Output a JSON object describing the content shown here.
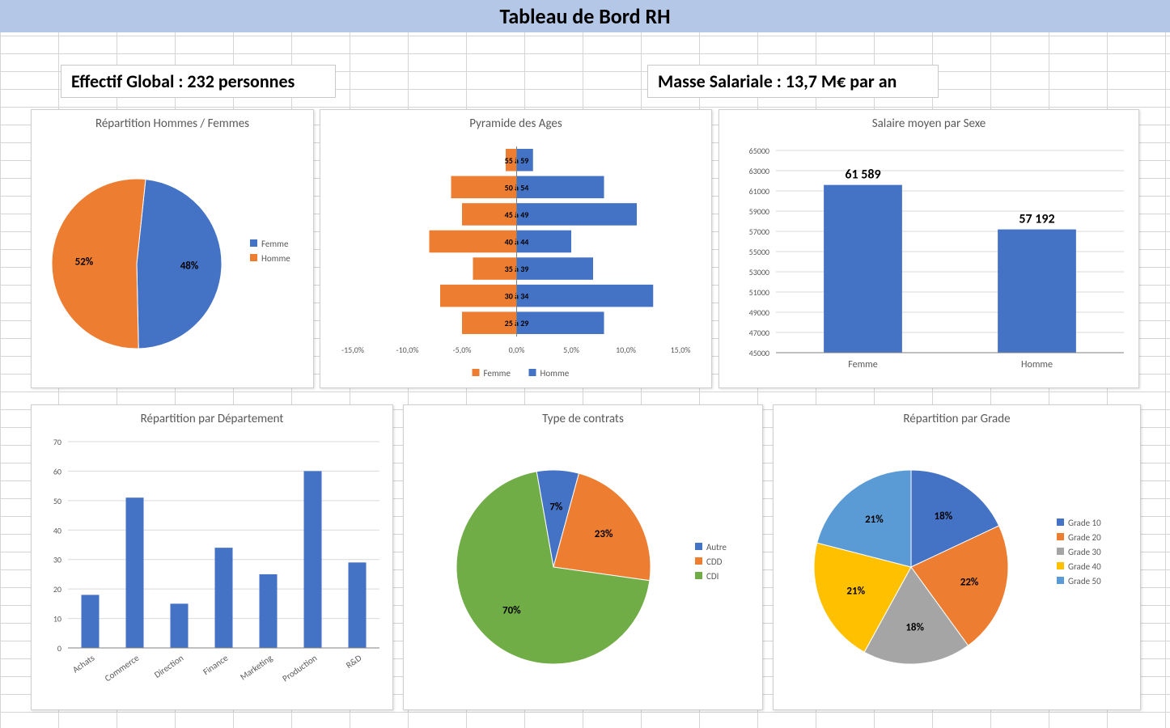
{
  "page_title": "Tableau de Bord RH",
  "kpi_left": "Effectif Global : 232 personnes",
  "kpi_right": "Masse Salariale : 13,7 M€ par an",
  "colors": {
    "blue": "#4472c4",
    "orange": "#ed7d31",
    "green": "#70ad47",
    "grey": "#a5a5a5",
    "yellow": "#ffc000",
    "lightblue": "#5b9bd5",
    "text_grey": "#595959",
    "axis_grey": "#bfbfbf"
  },
  "gender_pie": {
    "title": "Répartition Hommes / Femmes",
    "slices": [
      {
        "label": "Femme",
        "data_label": "48%",
        "value": 48,
        "color": "#4472c4"
      },
      {
        "label": "Homme",
        "data_label": "52%",
        "value": 52,
        "color": "#ed7d31"
      }
    ],
    "legend": [
      "Femme",
      "Homme"
    ]
  },
  "age_pyramid": {
    "title": "Pyramide des Ages",
    "categories": [
      "55 à 59",
      "50 à 54",
      "45 à 49",
      "40 à 44",
      "35 à 39",
      "30 à 34",
      "25 à 29"
    ],
    "femme": [
      -1.0,
      -6.0,
      -5.0,
      -8.0,
      -4.0,
      -7.0,
      -5.0
    ],
    "homme": [
      1.5,
      8.0,
      11.0,
      5.0,
      7.0,
      12.5,
      8.0
    ],
    "femme_color": "#ed7d31",
    "homme_color": "#4472c4",
    "xticks": [
      "-15,0%",
      "-10,0%",
      "-5,0%",
      "0,0%",
      "5,0%",
      "10,0%",
      "15,0%"
    ],
    "xtick_vals": [
      -15,
      -10,
      -5,
      0,
      5,
      10,
      15
    ],
    "legend": [
      "Femme",
      "Homme"
    ],
    "label_fontsize": 10
  },
  "salary_bar": {
    "title": "Salaire moyen par Sexe",
    "categories": [
      "Femme",
      "Homme"
    ],
    "values": [
      61589,
      57192
    ],
    "value_labels": [
      "61 589",
      "57 192"
    ],
    "bar_color": "#4472c4",
    "ylim": [
      45000,
      65000
    ],
    "yticks": [
      45000,
      47000,
      49000,
      51000,
      53000,
      55000,
      57000,
      59000,
      61000,
      63000,
      65000
    ],
    "grid_color": "#d9d9d9",
    "bar_width": 0.45
  },
  "dept_bar": {
    "title": "Répartition par Département",
    "categories": [
      "Achats",
      "Commerce",
      "Direction",
      "Finance",
      "Marketing",
      "Production",
      "R&D"
    ],
    "values": [
      18,
      51,
      15,
      34,
      25,
      60,
      29
    ],
    "bar_color": "#4472c4",
    "ylim": [
      0,
      70
    ],
    "ytick_step": 10,
    "grid_color": "#d9d9d9",
    "bar_width": 0.4,
    "xlabel_rotate": -35
  },
  "contract_pie": {
    "title": "Type de contrats",
    "slices": [
      {
        "label": "Autre",
        "data_label": "7%",
        "value": 7,
        "color": "#4472c4"
      },
      {
        "label": "CDD",
        "data_label": "23%",
        "value": 23,
        "color": "#ed7d31"
      },
      {
        "label": "CDI",
        "data_label": "70%",
        "value": 70,
        "color": "#70ad47"
      }
    ],
    "legend": [
      "Autre",
      "CDD",
      "CDI"
    ],
    "start_angle_deg": -10
  },
  "grade_pie": {
    "title": "Répartition par Grade",
    "slices": [
      {
        "label": "Grade 10",
        "data_label": "18%",
        "value": 18,
        "color": "#4472c4"
      },
      {
        "label": "Grade 20",
        "data_label": "22%",
        "value": 22,
        "color": "#ed7d31"
      },
      {
        "label": "Grade 30",
        "data_label": "18%",
        "value": 18,
        "color": "#a5a5a5"
      },
      {
        "label": "Grade 40",
        "data_label": "21%",
        "value": 21,
        "color": "#ffc000"
      },
      {
        "label": "Grade 50",
        "data_label": "21%",
        "value": 21,
        "color": "#5b9bd5"
      }
    ],
    "legend": [
      "Grade 10",
      "Grade 20",
      "Grade 30",
      "Grade 40",
      "Grade 50"
    ],
    "start_angle_deg": 0
  }
}
